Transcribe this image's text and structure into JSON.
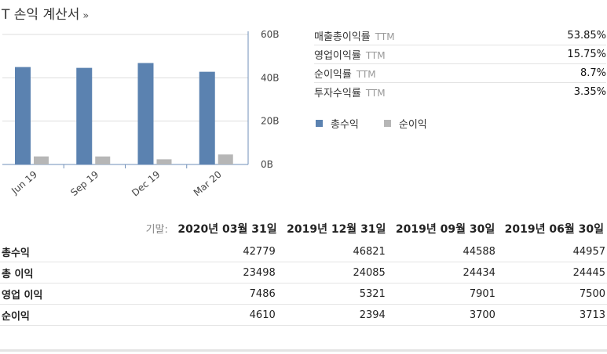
{
  "header": {
    "title": "T 손익 계산서",
    "arrow": "»"
  },
  "ratios": [
    {
      "label": "매출총이익률",
      "ttm": "TTM",
      "value": "53.85%"
    },
    {
      "label": "영업이익률",
      "ttm": "TTM",
      "value": "15.75%"
    },
    {
      "label": "순이익률",
      "ttm": "TTM",
      "value": "8.7%"
    },
    {
      "label": "투자수익률",
      "ttm": "TTM",
      "value": "3.35%"
    }
  ],
  "legend": {
    "revenue": "총수익",
    "net_income": "순이익"
  },
  "colors": {
    "revenue": "#5b82b0",
    "net_income": "#b6b6b6",
    "axis": "#6f8fb8",
    "grid": "#dddddd"
  },
  "chart_data": {
    "type": "bar",
    "categories": [
      "Jun 19",
      "Sep 19",
      "Dec 19",
      "Mar 20"
    ],
    "series": [
      {
        "name": "총수익",
        "values": [
          44957,
          44588,
          46821,
          42779
        ]
      },
      {
        "name": "순이익",
        "values": [
          3713,
          3700,
          2394,
          4610
        ]
      }
    ],
    "value_unit": "M",
    "ylim": [
      0,
      60000
    ],
    "yticks": [
      "60B",
      "40B",
      "20B",
      "0B"
    ],
    "ytick_values": [
      60000,
      40000,
      20000,
      0
    ],
    "grid": true
  },
  "table": {
    "period_label": "기말:",
    "periods": [
      "2020년 03월 31일",
      "2019년 12월 31일",
      "2019년 09월 30일",
      "2019년 06월 30일"
    ],
    "rows": [
      {
        "label": "총수익",
        "values": [
          "42779",
          "46821",
          "44588",
          "44957"
        ]
      },
      {
        "label": "총 이익",
        "values": [
          "23498",
          "24085",
          "24434",
          "24445"
        ]
      },
      {
        "label": "영업 이익",
        "values": [
          "7486",
          "5321",
          "7901",
          "7500"
        ]
      },
      {
        "label": "순이익",
        "values": [
          "4610",
          "2394",
          "3700",
          "3713"
        ]
      }
    ]
  }
}
